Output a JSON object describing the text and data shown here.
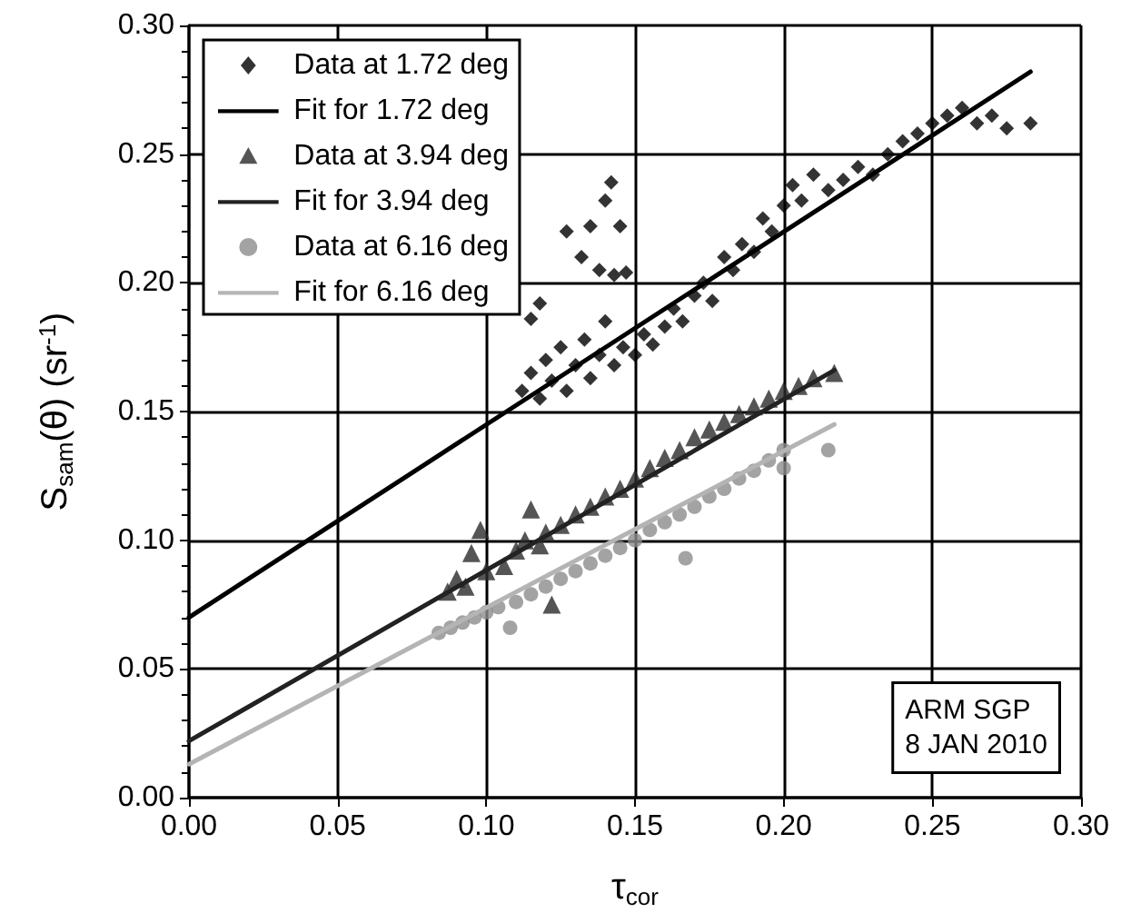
{
  "chart_data": {
    "type": "scatter",
    "xlabel": "τ$_{cor}$",
    "ylabel": "S$_{sam}$(θ) (sr$^{-1}$)",
    "xlim": [
      0,
      0.3
    ],
    "xticks": [
      {
        "value": 0,
        "label": "0.00"
      },
      {
        "value": 0.05,
        "label": "0.05"
      },
      {
        "value": 0.1,
        "label": "0.10"
      },
      {
        "value": 0.15,
        "label": "0.15"
      },
      {
        "value": 0.2,
        "label": "0.20"
      },
      {
        "value": 0.25,
        "label": "0.25"
      },
      {
        "value": 0.3,
        "label": "0.30"
      }
    ],
    "ylim": [
      0,
      0.3
    ],
    "yticks": [
      {
        "value": 0,
        "label": "0.00"
      },
      {
        "value": 0.05,
        "label": "0.05"
      },
      {
        "value": 0.1,
        "label": "0.10"
      },
      {
        "value": 0.15,
        "label": "0.15"
      },
      {
        "value": 0.2,
        "label": "0.20"
      },
      {
        "value": 0.25,
        "label": "0.25"
      },
      {
        "value": 0.3,
        "label": "0.30"
      }
    ],
    "grid": true,
    "legend": "top left",
    "annotations": [
      "ARM SGP",
      "8 JAN 2010"
    ],
    "series": [
      {
        "name": "Data at 1.72 deg",
        "type": "scatter",
        "marker": "diamond",
        "color": "#000000",
        "x": [
          0.112,
          0.115,
          0.118,
          0.12,
          0.122,
          0.125,
          0.127,
          0.13,
          0.133,
          0.135,
          0.138,
          0.14,
          0.143,
          0.146,
          0.15,
          0.153,
          0.156,
          0.16,
          0.163,
          0.166,
          0.17,
          0.173,
          0.176,
          0.18,
          0.183,
          0.186,
          0.19,
          0.193,
          0.196,
          0.2,
          0.203,
          0.206,
          0.21,
          0.215,
          0.22,
          0.225,
          0.23,
          0.235,
          0.24,
          0.245,
          0.25,
          0.255,
          0.26,
          0.265,
          0.27,
          0.275,
          0.283,
          0.115,
          0.118,
          0.127,
          0.132,
          0.135,
          0.138,
          0.142,
          0.14,
          0.145,
          0.143,
          0.147
        ],
        "values": [
          0.158,
          0.165,
          0.155,
          0.17,
          0.162,
          0.175,
          0.158,
          0.168,
          0.178,
          0.163,
          0.172,
          0.185,
          0.168,
          0.175,
          0.172,
          0.18,
          0.176,
          0.183,
          0.19,
          0.185,
          0.195,
          0.2,
          0.193,
          0.21,
          0.205,
          0.215,
          0.212,
          0.225,
          0.22,
          0.23,
          0.238,
          0.232,
          0.242,
          0.236,
          0.24,
          0.245,
          0.242,
          0.25,
          0.255,
          0.258,
          0.262,
          0.265,
          0.268,
          0.262,
          0.265,
          0.26,
          0.262,
          0.186,
          0.192,
          0.22,
          0.21,
          0.222,
          0.205,
          0.239,
          0.232,
          0.222,
          0.203,
          0.204
        ]
      },
      {
        "name": "Fit for 1.72 deg",
        "type": "line",
        "marker": "none",
        "color": "#000000",
        "x": [
          0,
          0.283
        ],
        "values": [
          0.07,
          0.282
        ]
      },
      {
        "name": "Data at 3.94 deg",
        "type": "scatter",
        "marker": "triangle",
        "color": "#2a2a2a",
        "x": [
          0.087,
          0.09,
          0.093,
          0.095,
          0.098,
          0.1,
          0.106,
          0.11,
          0.113,
          0.115,
          0.118,
          0.12,
          0.125,
          0.13,
          0.135,
          0.14,
          0.145,
          0.15,
          0.155,
          0.16,
          0.165,
          0.17,
          0.175,
          0.18,
          0.185,
          0.19,
          0.195,
          0.2,
          0.205,
          0.21,
          0.217,
          0.122
        ],
        "values": [
          0.08,
          0.085,
          0.082,
          0.095,
          0.104,
          0.088,
          0.09,
          0.096,
          0.1,
          0.112,
          0.098,
          0.103,
          0.106,
          0.11,
          0.113,
          0.117,
          0.12,
          0.124,
          0.128,
          0.132,
          0.135,
          0.14,
          0.143,
          0.146,
          0.149,
          0.152,
          0.155,
          0.158,
          0.16,
          0.163,
          0.165,
          0.075
        ]
      },
      {
        "name": "Fit for 3.94 deg",
        "type": "line",
        "marker": "none",
        "color": "#222222",
        "x": [
          0,
          0.217
        ],
        "values": [
          0.022,
          0.166
        ]
      },
      {
        "name": "Data at 6.16 deg",
        "type": "scatter",
        "marker": "circle",
        "color": "#8c8c8c",
        "x": [
          0.084,
          0.088,
          0.092,
          0.096,
          0.1,
          0.104,
          0.108,
          0.11,
          0.115,
          0.12,
          0.125,
          0.13,
          0.135,
          0.14,
          0.145,
          0.15,
          0.155,
          0.16,
          0.165,
          0.17,
          0.175,
          0.18,
          0.185,
          0.19,
          0.195,
          0.2,
          0.2,
          0.215,
          0.167
        ],
        "values": [
          0.064,
          0.066,
          0.068,
          0.07,
          0.072,
          0.074,
          0.066,
          0.076,
          0.079,
          0.082,
          0.085,
          0.088,
          0.091,
          0.094,
          0.097,
          0.1,
          0.104,
          0.107,
          0.11,
          0.113,
          0.117,
          0.12,
          0.124,
          0.127,
          0.131,
          0.135,
          0.128,
          0.135,
          0.093
        ]
      },
      {
        "name": "Fit for 6.16 deg",
        "type": "line",
        "marker": "none",
        "color": "#b4b4b4",
        "x": [
          0,
          0.217
        ],
        "values": [
          0.013,
          0.145
        ]
      }
    ]
  }
}
